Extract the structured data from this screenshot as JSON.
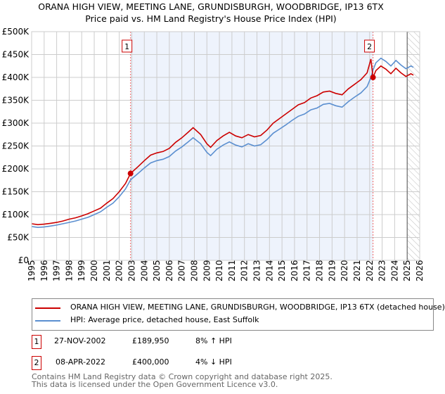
{
  "title": "ORANA HIGH VIEW, MEETING LANE, GRUNDISBURGH, WOODBRIDGE, IP13 6TX",
  "subtitle": "Price paid vs. HM Land Registry's House Price Index (HPI)",
  "chart_data": {
    "type": "line",
    "ylim": [
      0,
      500000
    ],
    "xlim": [
      1995,
      2026
    ],
    "yticks": [
      {
        "v": 0,
        "label": "£0"
      },
      {
        "v": 50000,
        "label": "£50K"
      },
      {
        "v": 100000,
        "label": "£100K"
      },
      {
        "v": 150000,
        "label": "£150K"
      },
      {
        "v": 200000,
        "label": "£200K"
      },
      {
        "v": 250000,
        "label": "£250K"
      },
      {
        "v": 300000,
        "label": "£300K"
      },
      {
        "v": 350000,
        "label": "£350K"
      },
      {
        "v": 400000,
        "label": "£400K"
      },
      {
        "v": 450000,
        "label": "£450K"
      },
      {
        "v": 500000,
        "label": "£500K"
      }
    ],
    "xticks": [
      "1995",
      "1996",
      "1997",
      "1998",
      "1999",
      "2000",
      "2001",
      "2002",
      "2003",
      "2004",
      "2005",
      "2006",
      "2007",
      "2008",
      "2009",
      "2010",
      "2011",
      "2012",
      "2013",
      "2014",
      "2015",
      "2016",
      "2017",
      "2018",
      "2019",
      "2020",
      "2021",
      "2022",
      "2023",
      "2024",
      "2025",
      "2026"
    ],
    "grid": true,
    "shaded_period": [
      2002.9,
      2022.27
    ],
    "forecast_from": 2025.0,
    "series": [
      {
        "name": "ORANA HIGH VIEW, MEETING LANE, GRUNDISBURGH, WOODBRIDGE, IP13 6TX (detached house)",
        "color": "#cc0000",
        "x": [
          1995,
          1995.5,
          1996,
          1996.5,
          1997,
          1997.5,
          1998,
          1998.5,
          1999,
          1999.5,
          2000,
          2000.5,
          2001,
          2001.5,
          2002,
          2002.5,
          2002.9,
          2003.5,
          2004,
          2004.5,
          2005,
          2005.5,
          2006,
          2006.5,
          2007,
          2007.5,
          2007.9,
          2008.5,
          2009,
          2009.3,
          2009.8,
          2010.3,
          2010.8,
          2011.3,
          2011.8,
          2012.3,
          2012.8,
          2013.3,
          2013.8,
          2014.3,
          2014.8,
          2015.3,
          2015.8,
          2016.3,
          2016.8,
          2017.3,
          2017.8,
          2018.3,
          2018.8,
          2019.3,
          2019.8,
          2020.3,
          2020.8,
          2021.3,
          2021.8,
          2022.1,
          2022.27,
          2022.5,
          2022.9,
          2023.3,
          2023.7,
          2024.1,
          2024.5,
          2024.9,
          2025.3,
          2025.5
        ],
        "y": [
          80000,
          78000,
          79000,
          81000,
          83000,
          86000,
          90000,
          93000,
          97000,
          102000,
          108000,
          114000,
          125000,
          135000,
          150000,
          168000,
          189950,
          205000,
          218000,
          230000,
          235000,
          238000,
          245000,
          258000,
          268000,
          280000,
          290000,
          275000,
          255000,
          247000,
          262000,
          272000,
          280000,
          272000,
          268000,
          275000,
          270000,
          273000,
          285000,
          300000,
          310000,
          320000,
          330000,
          340000,
          345000,
          355000,
          360000,
          368000,
          370000,
          365000,
          362000,
          375000,
          385000,
          395000,
          410000,
          440000,
          400000,
          415000,
          425000,
          418000,
          408000,
          420000,
          410000,
          402000,
          408000,
          405000
        ]
      },
      {
        "name": "HPI: Average price, detached house, East Suffolk",
        "color": "#5b8fd0",
        "x": [
          1995,
          1995.5,
          1996,
          1996.5,
          1997,
          1997.5,
          1998,
          1998.5,
          1999,
          1999.5,
          2000,
          2000.5,
          2001,
          2001.5,
          2002,
          2002.5,
          2002.9,
          2003.5,
          2004,
          2004.5,
          2005,
          2005.5,
          2006,
          2006.5,
          2007,
          2007.5,
          2007.9,
          2008.5,
          2009,
          2009.3,
          2009.8,
          2010.3,
          2010.8,
          2011.3,
          2011.8,
          2012.3,
          2012.8,
          2013.3,
          2013.8,
          2014.3,
          2014.8,
          2015.3,
          2015.8,
          2016.3,
          2016.8,
          2017.3,
          2017.8,
          2018.3,
          2018.8,
          2019.3,
          2019.8,
          2020.3,
          2020.8,
          2021.3,
          2021.8,
          2022.1,
          2022.27,
          2022.5,
          2022.9,
          2023.3,
          2023.7,
          2024.1,
          2024.5,
          2024.9,
          2025.3,
          2025.5
        ],
        "y": [
          74000,
          72000,
          73000,
          75000,
          77000,
          80000,
          83000,
          86000,
          90000,
          94000,
          100000,
          106000,
          116000,
          125000,
          139000,
          156000,
          176000,
          190000,
          202000,
          213000,
          218000,
          221000,
          227000,
          239000,
          248000,
          259000,
          268000,
          255000,
          236000,
          229000,
          243000,
          252000,
          259000,
          252000,
          248000,
          255000,
          250000,
          253000,
          264000,
          278000,
          287000,
          296000,
          306000,
          315000,
          320000,
          329000,
          333000,
          341000,
          343000,
          338000,
          335000,
          347000,
          357000,
          366000,
          380000,
          400000,
          416000,
          432000,
          442000,
          435000,
          425000,
          437000,
          427000,
          419000,
          425000,
          422000
        ]
      }
    ],
    "sales": [
      {
        "label": "1",
        "x": 2002.9,
        "y": 189950
      },
      {
        "label": "2",
        "x": 2022.27,
        "y": 400000
      }
    ]
  },
  "legend": {
    "property": "ORANA HIGH VIEW, MEETING LANE, GRUNDISBURGH, WOODBRIDGE, IP13 6TX (detached house)",
    "hpi": "HPI: Average price, detached house, East Suffolk"
  },
  "transactions": [
    {
      "num": "1",
      "date": "27-NOV-2002",
      "price": "£189,950",
      "hpi": "8% ↑ HPI"
    },
    {
      "num": "2",
      "date": "08-APR-2022",
      "price": "£400,000",
      "hpi": "4% ↓ HPI"
    }
  ],
  "footer": {
    "line1": "Contains HM Land Registry data © Crown copyright and database right 2025.",
    "line2": "This data is licensed under the Open Government Licence v3.0."
  }
}
